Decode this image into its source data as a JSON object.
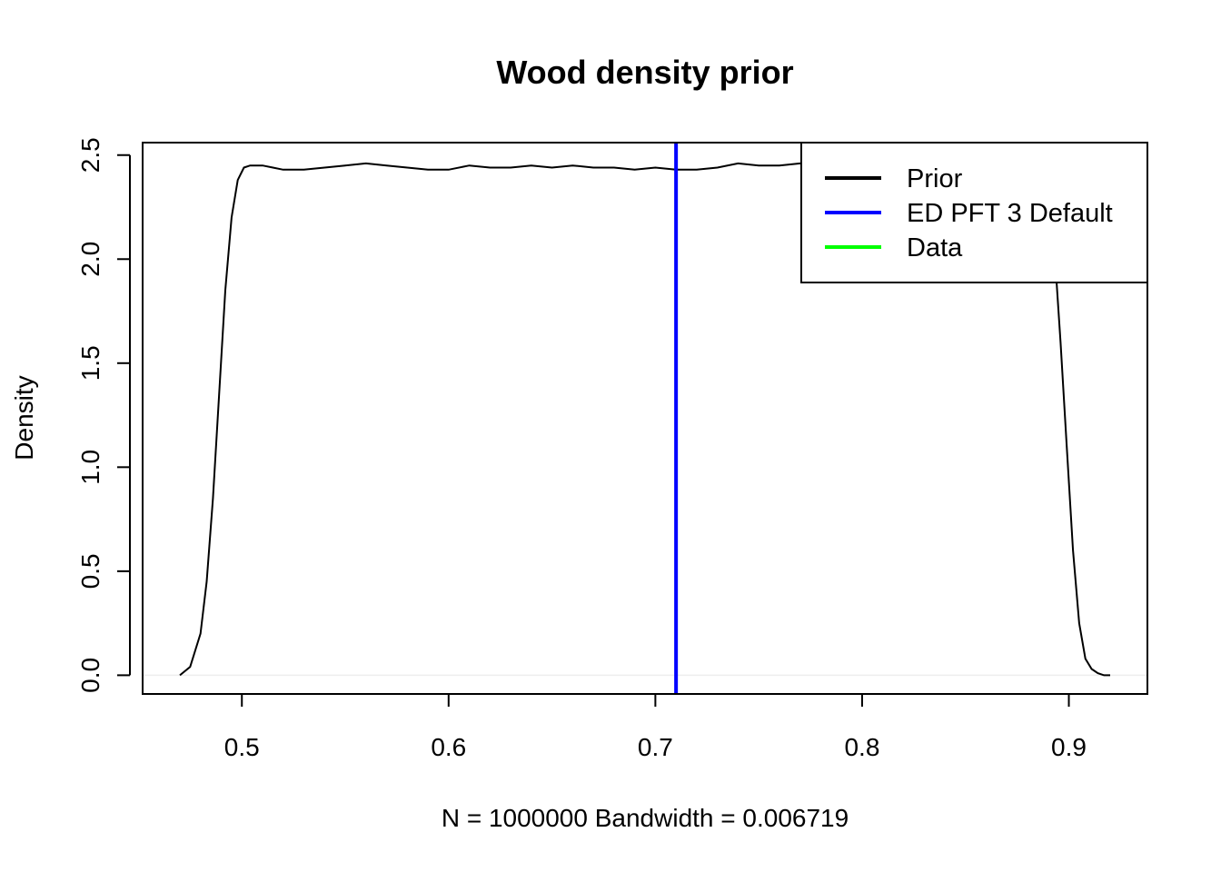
{
  "chart_data": {
    "type": "line",
    "title": "Wood density prior",
    "xlabel": "N = 1000000   Bandwidth = 0.006719",
    "ylabel": "Density",
    "xlim": [
      0.452,
      0.938
    ],
    "ylim": [
      -0.09,
      2.56
    ],
    "x_ticks": [
      0.5,
      0.6,
      0.7,
      0.8,
      0.9
    ],
    "x_tick_labels": [
      "0.5",
      "0.6",
      "0.7",
      "0.8",
      "0.9"
    ],
    "y_ticks": [
      0.0,
      0.5,
      1.0,
      1.5,
      2.0,
      2.5
    ],
    "y_tick_labels": [
      "0.0",
      "0.5",
      "1.0",
      "1.5",
      "2.0",
      "2.5"
    ],
    "grid": false,
    "legend_position": "top-right",
    "series": [
      {
        "name": "Prior",
        "color": "#000000",
        "x": [
          0.47,
          0.475,
          0.48,
          0.483,
          0.486,
          0.489,
          0.492,
          0.495,
          0.498,
          0.501,
          0.504,
          0.507,
          0.51,
          0.515,
          0.52,
          0.53,
          0.54,
          0.55,
          0.56,
          0.57,
          0.58,
          0.59,
          0.6,
          0.61,
          0.62,
          0.63,
          0.64,
          0.65,
          0.66,
          0.67,
          0.68,
          0.69,
          0.7,
          0.71,
          0.72,
          0.73,
          0.74,
          0.75,
          0.76,
          0.77,
          0.78,
          0.79,
          0.8,
          0.81,
          0.82,
          0.83,
          0.84,
          0.85,
          0.86,
          0.87,
          0.88,
          0.885,
          0.89,
          0.893,
          0.896,
          0.899,
          0.902,
          0.905,
          0.908,
          0.911,
          0.914,
          0.917,
          0.92
        ],
        "values": [
          0.0,
          0.04,
          0.2,
          0.45,
          0.85,
          1.35,
          1.85,
          2.2,
          2.38,
          2.44,
          2.45,
          2.45,
          2.45,
          2.44,
          2.43,
          2.43,
          2.44,
          2.45,
          2.46,
          2.45,
          2.44,
          2.43,
          2.43,
          2.45,
          2.44,
          2.44,
          2.45,
          2.44,
          2.45,
          2.44,
          2.44,
          2.43,
          2.44,
          2.43,
          2.43,
          2.44,
          2.46,
          2.45,
          2.45,
          2.46,
          2.45,
          2.44,
          2.44,
          2.45,
          2.45,
          2.44,
          2.44,
          2.45,
          2.44,
          2.44,
          2.45,
          2.43,
          2.3,
          2.05,
          1.6,
          1.1,
          0.6,
          0.25,
          0.08,
          0.03,
          0.01,
          0.0,
          0.0
        ]
      },
      {
        "name": "ED PFT 3 Default",
        "color": "#0000ff",
        "vline_x": 0.71
      },
      {
        "name": "Data",
        "color": "#00ff00"
      }
    ]
  }
}
